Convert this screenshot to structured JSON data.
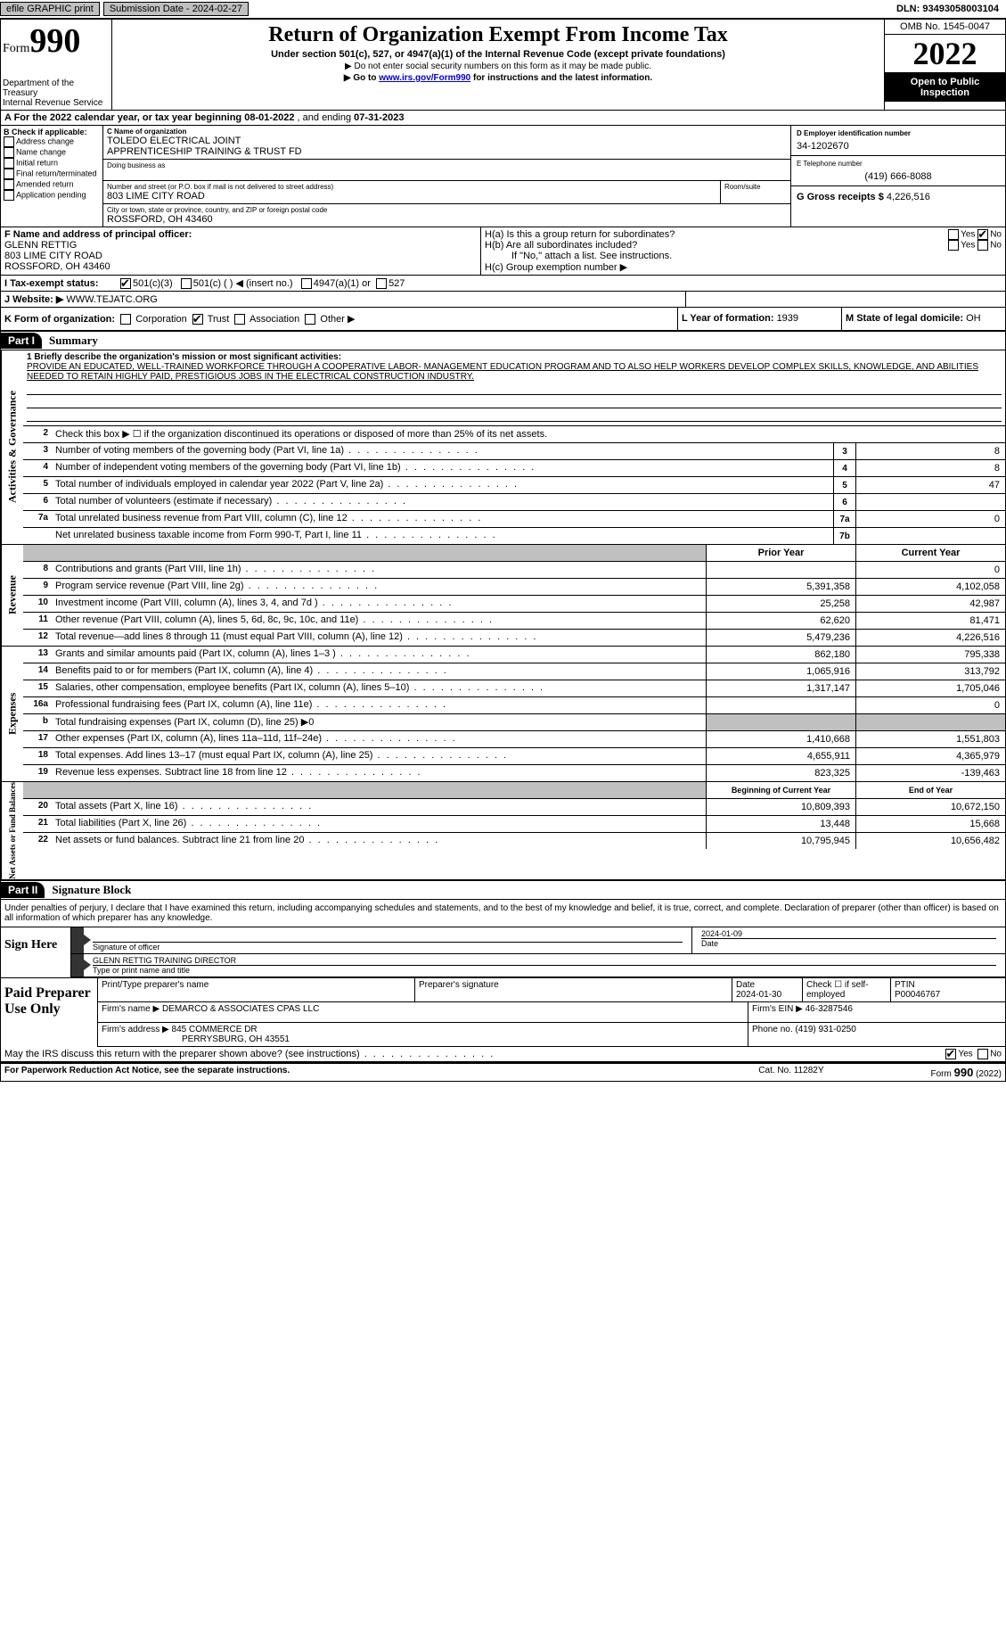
{
  "topbar": {
    "efile": "efile GRAPHIC print",
    "sub_label": "Submission Date - ",
    "sub_date": "2024-02-27",
    "dln_label": "DLN: ",
    "dln": "93493058003104"
  },
  "header": {
    "form_word": "Form",
    "form_num": "990",
    "title": "Return of Organization Exempt From Income Tax",
    "subtitle": "Under section 501(c), 527, or 4947(a)(1) of the Internal Revenue Code (except private foundations)",
    "warn": "▶ Do not enter social security numbers on this form as it may be made public.",
    "goto_pre": "▶ Go to ",
    "goto_link": "www.irs.gov/Form990",
    "goto_post": " for instructions and the latest information.",
    "dept": "Department of the Treasury\nInternal Revenue Service",
    "omb": "OMB No. 1545-0047",
    "year": "2022",
    "open": "Open to Public Inspection"
  },
  "rowA": {
    "text": "A For the 2022 calendar year, or tax year beginning ",
    "begin": "08-01-2022",
    "mid": "    , and ending ",
    "end": "07-31-2023"
  },
  "colB": {
    "label": "B Check if applicable:",
    "items": [
      "Address change",
      "Name change",
      "Initial return",
      "Final return/terminated",
      "Amended return",
      "Application pending"
    ]
  },
  "colC": {
    "name_label": "C Name of organization",
    "name1": "TOLEDO ELECTRICAL JOINT",
    "name2": "APPRENTICESHIP TRAINING & TRUST FD",
    "dba_label": "Doing business as",
    "addr_label": "Number and street (or P.O. box if mail is not delivered to street address)",
    "room_label": "Room/suite",
    "addr": "803 LIME CITY ROAD",
    "city_label": "City or town, state or province, country, and ZIP or foreign postal code",
    "city": "ROSSFORD, OH  43460"
  },
  "colD": {
    "ein_label": "D Employer identification number",
    "ein": "34-1202670",
    "phone_label": "E Telephone number",
    "phone": "(419) 666-8088",
    "gross_label": "G Gross receipts $ ",
    "gross": "4,226,516"
  },
  "colF": {
    "label": "F Name and address of principal officer:",
    "name": "GLENN RETTIG",
    "addr": "803 LIME CITY ROAD",
    "city": "ROSSFORD, OH  43460"
  },
  "colH": {
    "ha": "H(a)  Is this a group return for subordinates?",
    "hb": "H(b)  Are all subordinates included?",
    "hb2": "If \"No,\" attach a list. See instructions.",
    "hc": "H(c)  Group exemption number ▶"
  },
  "rowI": {
    "label": "I   Tax-exempt status:",
    "opt1": "501(c)(3)",
    "opt2": "501(c) (   ) ◀ (insert no.)",
    "opt3": "4947(a)(1) or",
    "opt4": "527"
  },
  "rowJ": {
    "label": "J   Website: ▶  ",
    "site": "WWW.TEJATC.ORG"
  },
  "rowK": {
    "label": "K Form of organization:",
    "opts": [
      "Corporation",
      "Trust",
      "Association",
      "Other ▶"
    ],
    "l_label": "L Year of formation: ",
    "l_val": "1939",
    "m_label": "M State of legal domicile: ",
    "m_val": "OH"
  },
  "part1": {
    "tag": "Part I",
    "title": "Summary"
  },
  "briefly": {
    "q": "1  Briefly describe the organization's mission or most significant activities:",
    "a": "PROVIDE AN EDUCATED, WELL-TRAINED WORKFORCE THROUGH A COOPERATIVE LABOR- MANAGEMENT EDUCATION PROGRAM AND TO ALSO HELP WORKERS DEVELOP COMPLEX SKILLS, KNOWLEDGE, AND ABILITIES NEEDED TO RETAIN HIGHLY PAID, PRESTIGIOUS JOBS IN THE ELECTRICAL CONSTRUCTION INDUSTRY."
  },
  "gov_lines": [
    {
      "n": "2",
      "t": "Check this box ▶ ☐  if the organization discontinued its operations or disposed of more than 25% of its net assets."
    },
    {
      "n": "3",
      "t": "Number of voting members of the governing body (Part VI, line 1a)",
      "box": "3",
      "v": "8"
    },
    {
      "n": "4",
      "t": "Number of independent voting members of the governing body (Part VI, line 1b)",
      "box": "4",
      "v": "8"
    },
    {
      "n": "5",
      "t": "Total number of individuals employed in calendar year 2022 (Part V, line 2a)",
      "box": "5",
      "v": "47"
    },
    {
      "n": "6",
      "t": "Total number of volunteers (estimate if necessary)",
      "box": "6",
      "v": ""
    },
    {
      "n": "7a",
      "t": "Total unrelated business revenue from Part VIII, column (C), line 12",
      "box": "7a",
      "v": "0"
    },
    {
      "n": "",
      "t": "Net unrelated business taxable income from Form 990-T, Part I, line 11",
      "box": "7b",
      "v": ""
    }
  ],
  "col_headers": {
    "prior": "Prior Year",
    "current": "Current Year"
  },
  "revenue": [
    {
      "n": "8",
      "t": "Contributions and grants (Part VIII, line 1h)",
      "p": "",
      "c": "0"
    },
    {
      "n": "9",
      "t": "Program service revenue (Part VIII, line 2g)",
      "p": "5,391,358",
      "c": "4,102,058"
    },
    {
      "n": "10",
      "t": "Investment income (Part VIII, column (A), lines 3, 4, and 7d )",
      "p": "25,258",
      "c": "42,987"
    },
    {
      "n": "11",
      "t": "Other revenue (Part VIII, column (A), lines 5, 6d, 8c, 9c, 10c, and 11e)",
      "p": "62,620",
      "c": "81,471"
    },
    {
      "n": "12",
      "t": "Total revenue—add lines 8 through 11 (must equal Part VIII, column (A), line 12)",
      "p": "5,479,236",
      "c": "4,226,516"
    }
  ],
  "expenses": [
    {
      "n": "13",
      "t": "Grants and similar amounts paid (Part IX, column (A), lines 1–3 )",
      "p": "862,180",
      "c": "795,338"
    },
    {
      "n": "14",
      "t": "Benefits paid to or for members (Part IX, column (A), line 4)",
      "p": "1,065,916",
      "c": "313,792"
    },
    {
      "n": "15",
      "t": "Salaries, other compensation, employee benefits (Part IX, column (A), lines 5–10)",
      "p": "1,317,147",
      "c": "1,705,046"
    },
    {
      "n": "16a",
      "t": "Professional fundraising fees (Part IX, column (A), line 11e)",
      "p": "",
      "c": "0"
    },
    {
      "n": "b",
      "t": "Total fundraising expenses (Part IX, column (D), line 25) ▶0",
      "shaded": true
    },
    {
      "n": "17",
      "t": "Other expenses (Part IX, column (A), lines 11a–11d, 11f–24e)",
      "p": "1,410,668",
      "c": "1,551,803"
    },
    {
      "n": "18",
      "t": "Total expenses. Add lines 13–17 (must equal Part IX, column (A), line 25)",
      "p": "4,655,911",
      "c": "4,365,979"
    },
    {
      "n": "19",
      "t": "Revenue less expenses. Subtract line 18 from line 12",
      "p": "823,325",
      "c": "-139,463"
    }
  ],
  "net_headers": {
    "begin": "Beginning of Current Year",
    "end": "End of Year"
  },
  "netassets": [
    {
      "n": "20",
      "t": "Total assets (Part X, line 16)",
      "p": "10,809,393",
      "c": "10,672,150"
    },
    {
      "n": "21",
      "t": "Total liabilities (Part X, line 26)",
      "p": "13,448",
      "c": "15,668"
    },
    {
      "n": "22",
      "t": "Net assets or fund balances. Subtract line 21 from line 20",
      "p": "10,795,945",
      "c": "10,656,482"
    }
  ],
  "part2": {
    "tag": "Part II",
    "title": "Signature Block",
    "decl": "Under penalties of perjury, I declare that I have examined this return, including accompanying schedules and statements, and to the best of my knowledge and belief, it is true, correct, and complete. Declaration of preparer (other than officer) is based on all information of which preparer has any knowledge."
  },
  "sign": {
    "label": "Sign Here",
    "sig_label": "Signature of officer",
    "date": "2024-01-09",
    "date_label": "Date",
    "name": "GLENN RETTIG  TRAINING DIRECTOR",
    "name_label": "Type or print name and title"
  },
  "paid": {
    "label": "Paid Preparer Use Only",
    "h1": "Print/Type preparer's name",
    "h2": "Preparer's signature",
    "h3": "Date",
    "date": "2024-01-30",
    "h4": "Check ☐ if self-employed",
    "ptin_label": "PTIN",
    "ptin": "P00046767",
    "firm_name_label": "Firm's name    ▶ ",
    "firm_name": "DEMARCO & ASSOCIATES CPAS LLC",
    "firm_ein_label": "Firm's EIN ▶ ",
    "firm_ein": "46-3287546",
    "firm_addr_label": "Firm's address ▶ ",
    "firm_addr1": "845 COMMERCE DR",
    "firm_addr2": "PERRYSBURG, OH  43551",
    "phone_label": "Phone no. ",
    "phone": "(419) 931-0250"
  },
  "discuss": {
    "q": "May the IRS discuss this return with the preparer shown above? (see instructions)",
    "yes": "Yes",
    "no": "No"
  },
  "footer": {
    "left": "For Paperwork Reduction Act Notice, see the separate instructions.",
    "mid": "Cat. No. 11282Y",
    "right_form": "Form ",
    "right_num": "990",
    "right_year": " (2022)"
  },
  "vert": {
    "gov": "Activities & Governance",
    "rev": "Revenue",
    "exp": "Expenses",
    "net": "Net Assets or Fund Balances"
  },
  "yn": {
    "yes": "Yes",
    "no": "No"
  }
}
